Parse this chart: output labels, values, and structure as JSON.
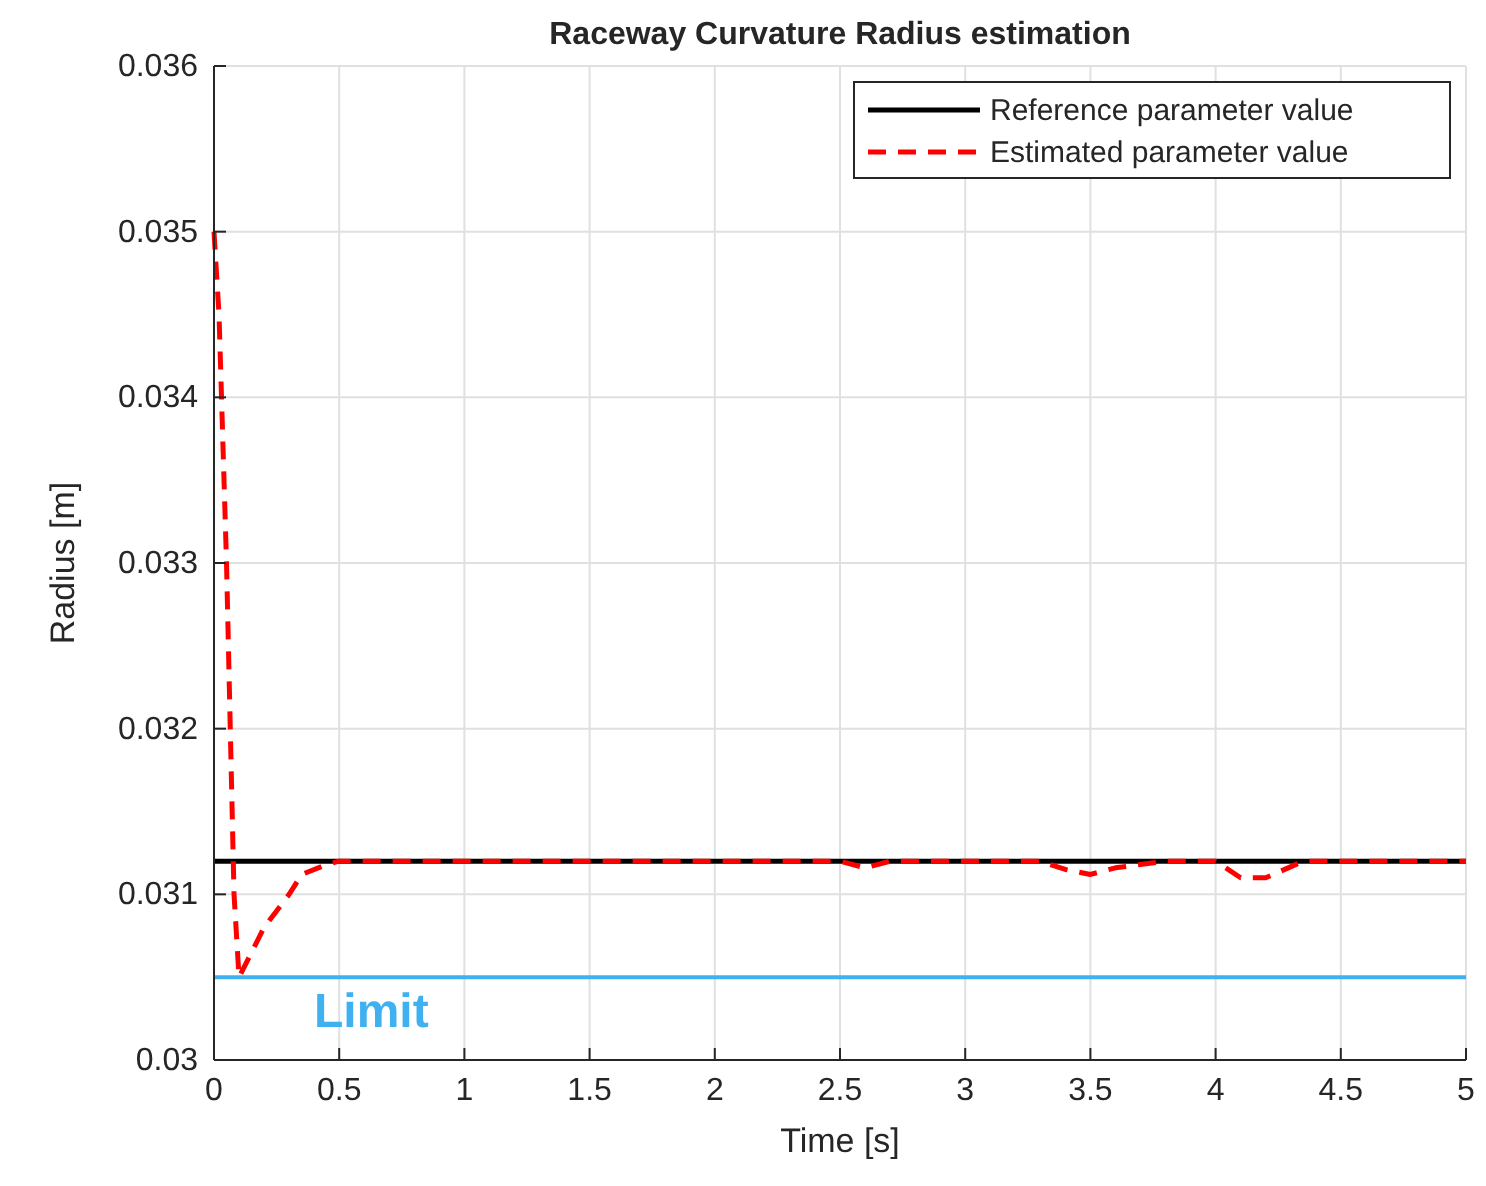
{
  "chart_data": {
    "type": "line",
    "title": "Raceway Curvature Radius estimation",
    "xlabel": "Time [s]",
    "ylabel": "Radius [m]",
    "xlim": [
      0,
      5
    ],
    "ylim": [
      0.03,
      0.036
    ],
    "xticks": [
      0,
      0.5,
      1,
      1.5,
      2,
      2.5,
      3,
      3.5,
      4,
      4.5,
      5
    ],
    "yticks": [
      0.03,
      0.031,
      0.032,
      0.033,
      0.034,
      0.035,
      0.036
    ],
    "grid": true,
    "legend": "top right",
    "series": [
      {
        "name": "Reference parameter value",
        "color": "#000000",
        "line_style": "solid",
        "x": [
          0,
          5
        ],
        "values": [
          0.0312,
          0.0312
        ]
      },
      {
        "name": "Estimated parameter value",
        "color": "#ff0000",
        "line_style": "dashed",
        "x": [
          0,
          0.02,
          0.05,
          0.08,
          0.1,
          0.15,
          0.2,
          0.25,
          0.3,
          0.35,
          0.45,
          0.5,
          1,
          1.5,
          2,
          2.5,
          2.6,
          2.7,
          3,
          3.3,
          3.4,
          3.5,
          3.6,
          3.8,
          4,
          4.1,
          4.2,
          4.35,
          4.5,
          5
        ],
        "values": [
          0.035,
          0.0345,
          0.033,
          0.031,
          0.0305,
          0.03065,
          0.0308,
          0.0309,
          0.031,
          0.03112,
          0.03118,
          0.0312,
          0.0312,
          0.0312,
          0.0312,
          0.0312,
          0.03116,
          0.0312,
          0.0312,
          0.0312,
          0.03115,
          0.03112,
          0.03116,
          0.0312,
          0.0312,
          0.0311,
          0.0311,
          0.0312,
          0.0312,
          0.0312
        ]
      }
    ],
    "ref_lines": [
      {
        "axis": "y",
        "value": 0.0305,
        "label": "Limit",
        "color": "#3fb0f0"
      }
    ]
  }
}
